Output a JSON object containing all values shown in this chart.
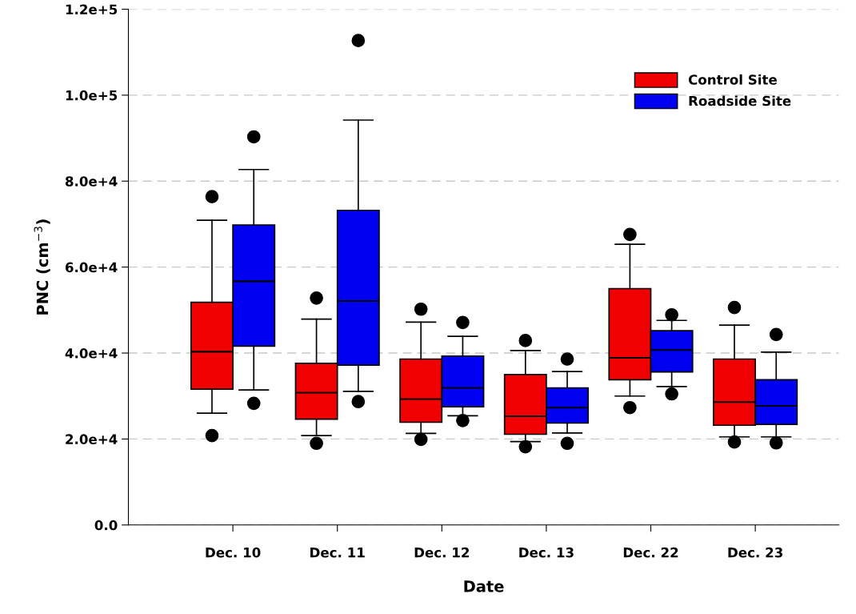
{
  "chart_data": {
    "type": "box",
    "xlabel": "Date",
    "ylabel": "PNC (cm$^{−3}$)",
    "categories": [
      "Dec. 10",
      "Dec. 11",
      "Dec. 12",
      "Dec. 13",
      "Dec. 22",
      "Dec. 23"
    ],
    "ylim": [
      0,
      120000
    ],
    "yticks": [
      {
        "value": 0,
        "label": "0.0"
      },
      {
        "value": 20000,
        "label": "2.0e+4"
      },
      {
        "value": 40000,
        "label": "4.0e+4"
      },
      {
        "value": 60000,
        "label": "6.0e+4"
      },
      {
        "value": 80000,
        "label": "8.0e+4"
      },
      {
        "value": 100000,
        "label": "1.0e+5"
      },
      {
        "value": 120000,
        "label": "1.2e+5"
      }
    ],
    "grid": "y",
    "legend": "top right",
    "series": [
      {
        "name": "Control Site",
        "color": "#f00000",
        "boxes": [
          {
            "low": 26000,
            "q1": 31600,
            "median": 40300,
            "q3": 51800,
            "high": 70900,
            "outliers": [
              20800,
              76400
            ]
          },
          {
            "low": 20800,
            "q1": 24600,
            "median": 30800,
            "q3": 37600,
            "high": 47900,
            "outliers": [
              19000,
              52800
            ]
          },
          {
            "low": 21300,
            "q1": 23900,
            "median": 29300,
            "q3": 38600,
            "high": 47200,
            "outliers": [
              19900,
              50200
            ]
          },
          {
            "low": 19400,
            "q1": 21100,
            "median": 25300,
            "q3": 35000,
            "high": 40600,
            "outliers": [
              18200,
              42900
            ]
          },
          {
            "low": 30000,
            "q1": 33800,
            "median": 38900,
            "q3": 55000,
            "high": 65300,
            "outliers": [
              27300,
              67600
            ]
          },
          {
            "low": 20500,
            "q1": 23200,
            "median": 28600,
            "q3": 38600,
            "high": 46500,
            "outliers": [
              19300,
              50600
            ]
          }
        ]
      },
      {
        "name": "Roadside Site",
        "color": "#0000f0",
        "boxes": [
          {
            "low": 31400,
            "q1": 41600,
            "median": 56700,
            "q3": 69800,
            "high": 82700,
            "outliers": [
              28300,
              90300
            ]
          },
          {
            "low": 31100,
            "q1": 37200,
            "median": 52100,
            "q3": 73200,
            "high": 94200,
            "outliers": [
              28700,
              112700
            ]
          },
          {
            "low": 25400,
            "q1": 27500,
            "median": 31900,
            "q3": 39300,
            "high": 43900,
            "outliers": [
              24300,
              47100
            ]
          },
          {
            "low": 21400,
            "q1": 23700,
            "median": 27300,
            "q3": 31900,
            "high": 35700,
            "outliers": [
              19000,
              38600
            ]
          },
          {
            "low": 32200,
            "q1": 35600,
            "median": 40700,
            "q3": 45200,
            "high": 47600,
            "outliers": [
              30500,
              48900
            ]
          },
          {
            "low": 20500,
            "q1": 23400,
            "median": 27700,
            "q3": 33800,
            "high": 40200,
            "outliers": [
              19100,
              44300
            ]
          }
        ]
      }
    ]
  }
}
